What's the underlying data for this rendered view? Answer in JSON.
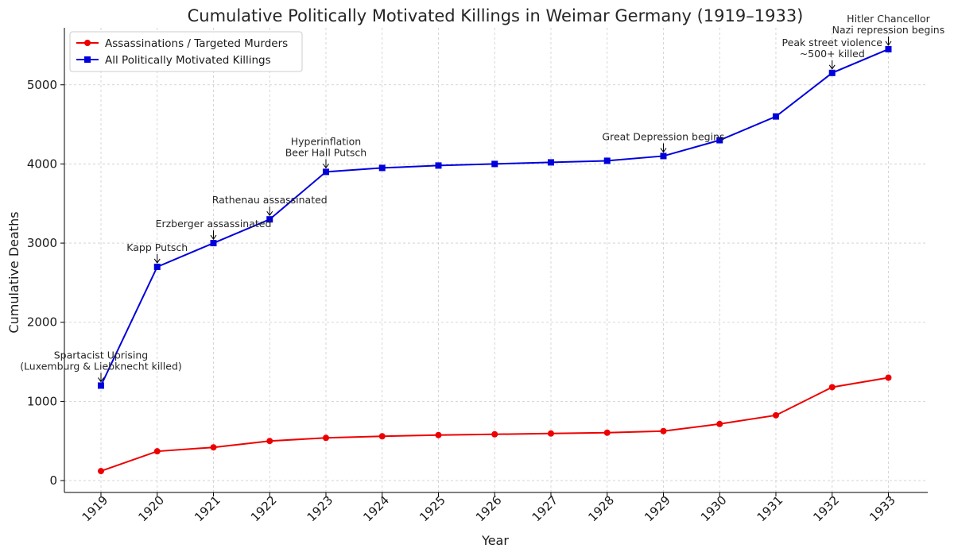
{
  "chart_data": {
    "type": "line",
    "title": "Cumulative Politically Motivated Killings in Weimar Germany (1919–1933)",
    "xlabel": "Year",
    "ylabel": "Cumulative Deaths",
    "x": [
      1919,
      1920,
      1921,
      1922,
      1923,
      1924,
      1925,
      1926,
      1927,
      1928,
      1929,
      1930,
      1931,
      1932,
      1933
    ],
    "x_tick_labels": [
      "1919",
      "1920",
      "1921",
      "1922",
      "1923",
      "1924",
      "1925",
      "1926",
      "1927",
      "1928",
      "1929",
      "1930",
      "1931",
      "1932",
      "1933"
    ],
    "y_ticks": [
      0,
      1000,
      2000,
      3000,
      4000,
      5000
    ],
    "y_tick_labels": [
      "0",
      "1000",
      "2000",
      "3000",
      "4000",
      "5000"
    ],
    "ylim": [
      -150,
      5720
    ],
    "xlim": [
      1918.35,
      1933.7
    ],
    "grid": true,
    "legend_position": "top-left",
    "series": [
      {
        "name": "Assassinations / Targeted Murders",
        "color": "#ee0000",
        "marker": "circle",
        "values": [
          120,
          370,
          420,
          500,
          540,
          560,
          575,
          585,
          595,
          605,
          625,
          715,
          825,
          1180,
          1300
        ]
      },
      {
        "name": "All Politically Motivated Killings",
        "color": "#0000dd",
        "marker": "square",
        "values": [
          1200,
          2700,
          3000,
          3300,
          3900,
          3950,
          3980,
          4000,
          4020,
          4040,
          4100,
          4300,
          4600,
          5150,
          5450
        ]
      }
    ],
    "annotations": [
      {
        "x": 1919,
        "y": 1200,
        "lines": [
          "Spartacist Uprising",
          "(Luxemburg & Liebknecht killed)"
        ]
      },
      {
        "x": 1920,
        "y": 2700,
        "lines": [
          "Kapp Putsch"
        ]
      },
      {
        "x": 1921,
        "y": 3000,
        "lines": [
          "Erzberger assassinated"
        ]
      },
      {
        "x": 1922,
        "y": 3300,
        "lines": [
          "Rathenau assassinated"
        ]
      },
      {
        "x": 1923,
        "y": 3900,
        "lines": [
          "Hyperinflation",
          "Beer Hall Putsch"
        ]
      },
      {
        "x": 1929,
        "y": 4100,
        "lines": [
          "Great Depression begins"
        ]
      },
      {
        "x": 1932,
        "y": 5150,
        "lines": [
          "Peak street violence",
          "~500+ killed"
        ]
      },
      {
        "x": 1933,
        "y": 5450,
        "lines": [
          "Hitler Chancellor",
          "Nazi repression begins"
        ]
      }
    ]
  }
}
